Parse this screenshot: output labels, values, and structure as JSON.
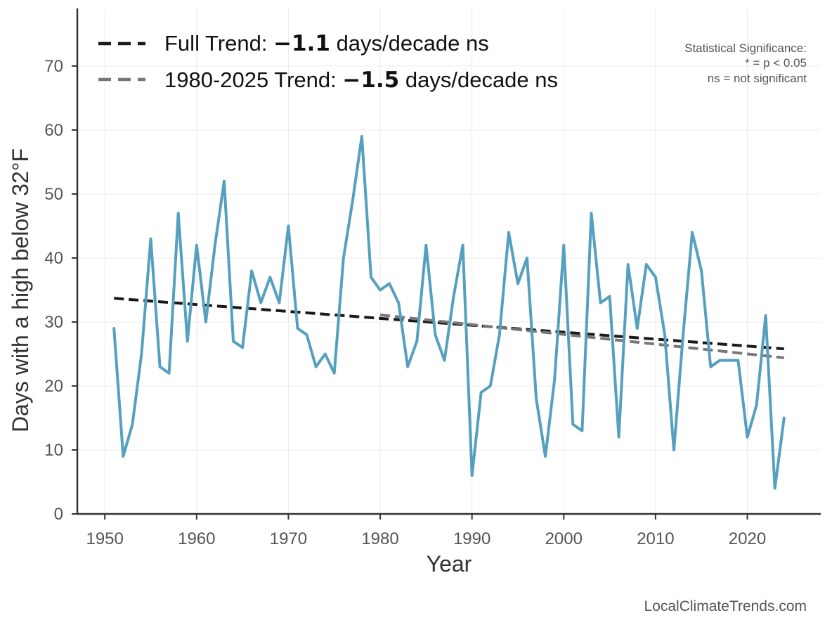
{
  "chart_data": {
    "type": "line",
    "xlabel": "Year",
    "ylabel": "Days with a high below 32°F",
    "xlim": [
      1947,
      2028
    ],
    "ylim": [
      0,
      79
    ],
    "xticks": [
      1950,
      1960,
      1970,
      1980,
      1990,
      2000,
      2010,
      2020
    ],
    "yticks": [
      0,
      10,
      20,
      30,
      40,
      50,
      60,
      70
    ],
    "grid": true,
    "series": [
      {
        "name": "Days with a high below 32°F",
        "color": "#56a0bf",
        "x": [
          1951,
          1952,
          1953,
          1954,
          1955,
          1956,
          1957,
          1958,
          1959,
          1960,
          1961,
          1962,
          1963,
          1964,
          1965,
          1966,
          1967,
          1968,
          1969,
          1970,
          1971,
          1972,
          1973,
          1974,
          1975,
          1976,
          1977,
          1978,
          1979,
          1980,
          1981,
          1982,
          1983,
          1984,
          1985,
          1986,
          1987,
          1988,
          1989,
          1990,
          1991,
          1992,
          1993,
          1994,
          1995,
          1996,
          1997,
          1998,
          1999,
          2000,
          2001,
          2002,
          2003,
          2004,
          2005,
          2006,
          2007,
          2008,
          2009,
          2010,
          2011,
          2012,
          2013,
          2014,
          2015,
          2016,
          2017,
          2018,
          2019,
          2020,
          2021,
          2022,
          2023,
          2024
        ],
        "values": [
          29,
          9,
          14,
          25,
          43,
          23,
          22,
          47,
          27,
          42,
          30,
          42,
          52,
          27,
          26,
          38,
          33,
          37,
          33,
          45,
          29,
          28,
          23,
          25,
          22,
          40,
          49,
          59,
          37,
          35,
          36,
          33,
          23,
          27,
          42,
          28,
          24,
          34,
          42,
          6,
          19,
          20,
          28,
          44,
          36,
          40,
          18,
          9,
          21,
          42,
          14,
          13,
          47,
          33,
          34,
          12,
          39,
          29,
          39,
          37,
          28,
          10,
          28,
          44,
          38,
          23,
          24,
          24,
          24,
          12,
          17,
          31,
          4,
          15
        ]
      }
    ],
    "trends": [
      {
        "name": "Full Trend",
        "color": "#1a1a1a",
        "x": [
          1951,
          2024
        ],
        "values": [
          33.7,
          25.8
        ],
        "legend_label": "Full Trend: ",
        "legend_value": "−1.1",
        "legend_suffix": " days/decade ns"
      },
      {
        "name": "1980-2025 Trend",
        "color": "#777777",
        "x": [
          1980,
          2024
        ],
        "values": [
          31.1,
          24.4
        ],
        "legend_label": "1980-2025 Trend: ",
        "legend_value": "−1.5",
        "legend_suffix": " days/decade ns"
      }
    ],
    "annotation": {
      "lines": [
        "Statistical Significance:",
        "* = p < 0.05",
        "ns = not significant"
      ]
    },
    "watermark": "LocalClimateTrends.com"
  }
}
